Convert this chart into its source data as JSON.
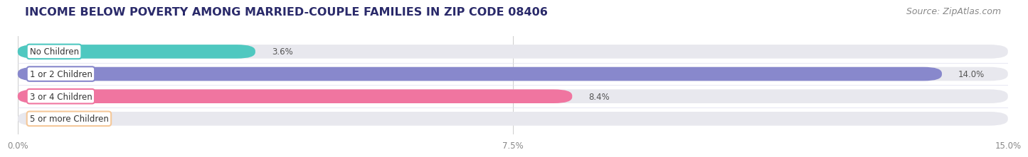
{
  "title": "INCOME BELOW POVERTY AMONG MARRIED-COUPLE FAMILIES IN ZIP CODE 08406",
  "source": "Source: ZipAtlas.com",
  "categories": [
    "No Children",
    "1 or 2 Children",
    "3 or 4 Children",
    "5 or more Children"
  ],
  "values": [
    3.6,
    14.0,
    8.4,
    0.0
  ],
  "bar_colors": [
    "#4fc8c0",
    "#8888cc",
    "#f075a0",
    "#f5c899"
  ],
  "bar_bg_color": "#e8e8ee",
  "xlim": [
    0,
    15.0
  ],
  "xticks": [
    0.0,
    7.5,
    15.0
  ],
  "xtick_labels": [
    "0.0%",
    "7.5%",
    "15.0%"
  ],
  "title_fontsize": 11.5,
  "source_fontsize": 9,
  "label_fontsize": 8.5,
  "value_fontsize": 8.5,
  "background_color": "#ffffff",
  "title_color": "#2a2a6a",
  "bar_height": 0.62,
  "bar_spacing": 1.0,
  "rounding_size": 0.28
}
